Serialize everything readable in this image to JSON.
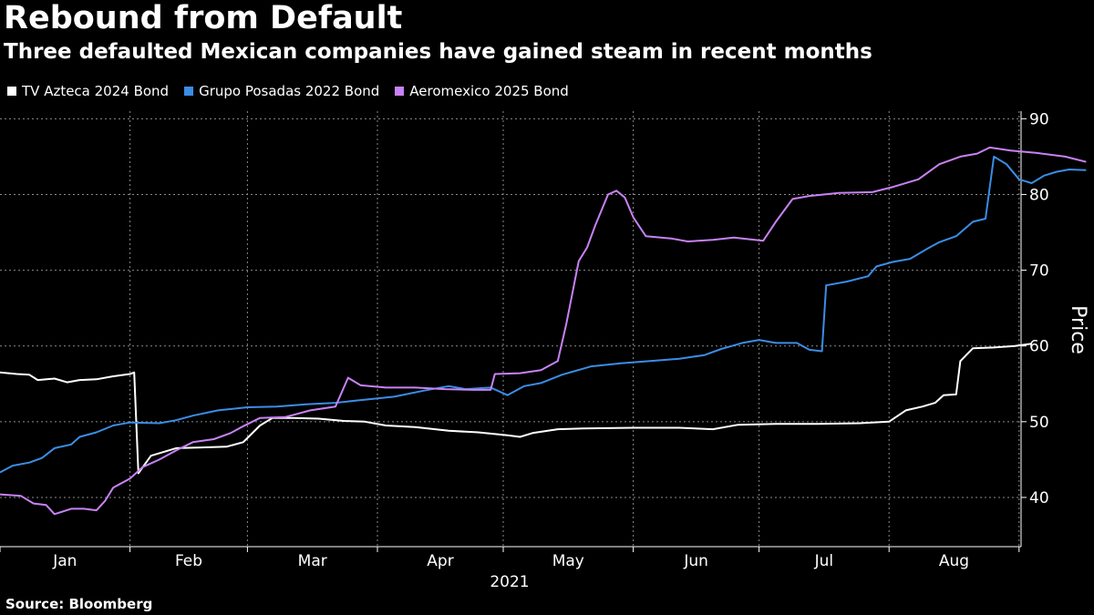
{
  "title": "Rebound from Default",
  "subtitle": "Three defaulted Mexican companies have gained steam in recent months",
  "source": "Source: Bloomberg",
  "chart_data": {
    "type": "line",
    "title": "Rebound from Default",
    "subtitle": "Three defaulted Mexican companies have gained steam in recent months",
    "ylabel": "Price",
    "xlabel": "2021",
    "ylim": [
      33.5,
      91
    ],
    "yticks": [
      40,
      50,
      60,
      70,
      80,
      90
    ],
    "xtick_labels": [
      "Jan",
      "Feb",
      "Mar",
      "Apr",
      "May",
      "Jun",
      "Jul",
      "Aug"
    ],
    "grid": true,
    "legend_position": "top-left",
    "series": [
      {
        "name": "TV Azteca 2024 Bond",
        "color": "#ffffff",
        "points": [
          [
            "2021-01-01",
            56.5
          ],
          [
            "2021-01-05",
            56.3
          ],
          [
            "2021-01-08",
            56.2
          ],
          [
            "2021-01-10",
            55.5
          ],
          [
            "2021-01-14",
            55.7
          ],
          [
            "2021-01-17",
            55.2
          ],
          [
            "2021-01-20",
            55.5
          ],
          [
            "2021-01-24",
            55.6
          ],
          [
            "2021-01-28",
            56.0
          ],
          [
            "2021-02-01",
            56.3
          ],
          [
            "2021-02-02",
            56.5
          ],
          [
            "2021-02-03",
            43.2
          ],
          [
            "2021-02-06",
            45.5
          ],
          [
            "2021-02-09",
            46.0
          ],
          [
            "2021-02-12",
            46.5
          ],
          [
            "2021-02-18",
            46.6
          ],
          [
            "2021-02-24",
            46.7
          ],
          [
            "2021-02-28",
            47.3
          ],
          [
            "2021-03-04",
            49.5
          ],
          [
            "2021-03-07",
            50.5
          ],
          [
            "2021-03-12",
            50.5
          ],
          [
            "2021-03-18",
            50.4
          ],
          [
            "2021-03-24",
            50.1
          ],
          [
            "2021-03-29",
            50.0
          ],
          [
            "2021-04-03",
            49.5
          ],
          [
            "2021-04-10",
            49.3
          ],
          [
            "2021-04-18",
            48.8
          ],
          [
            "2021-04-25",
            48.6
          ],
          [
            "2021-05-02",
            48.2
          ],
          [
            "2021-05-05",
            48.0
          ],
          [
            "2021-05-08",
            48.5
          ],
          [
            "2021-05-14",
            49.0
          ],
          [
            "2021-05-20",
            49.1
          ],
          [
            "2021-06-01",
            49.2
          ],
          [
            "2021-06-12",
            49.2
          ],
          [
            "2021-06-20",
            49.0
          ],
          [
            "2021-06-26",
            49.6
          ],
          [
            "2021-07-05",
            49.7
          ],
          [
            "2021-07-15",
            49.7
          ],
          [
            "2021-07-25",
            49.8
          ],
          [
            "2021-08-01",
            50.0
          ],
          [
            "2021-08-05",
            51.5
          ],
          [
            "2021-08-09",
            52.0
          ],
          [
            "2021-08-12",
            52.5
          ],
          [
            "2021-08-14",
            53.5
          ],
          [
            "2021-08-17",
            53.6
          ],
          [
            "2021-08-18",
            58.0
          ],
          [
            "2021-08-21",
            59.7
          ],
          [
            "2021-08-26",
            59.8
          ],
          [
            "2021-08-31",
            60.0
          ],
          [
            "2021-09-04",
            60.3
          ]
        ]
      },
      {
        "name": "Grupo Posadas 2022 Bond",
        "color": "#3b8de6",
        "points": [
          [
            "2021-01-01",
            43.3
          ],
          [
            "2021-01-04",
            44.2
          ],
          [
            "2021-01-08",
            44.6
          ],
          [
            "2021-01-11",
            45.2
          ],
          [
            "2021-01-14",
            46.5
          ],
          [
            "2021-01-18",
            47.0
          ],
          [
            "2021-01-20",
            48.0
          ],
          [
            "2021-01-24",
            48.6
          ],
          [
            "2021-01-28",
            49.5
          ],
          [
            "2021-02-01",
            49.9
          ],
          [
            "2021-02-08",
            49.8
          ],
          [
            "2021-02-12",
            50.2
          ],
          [
            "2021-02-16",
            50.8
          ],
          [
            "2021-02-22",
            51.5
          ],
          [
            "2021-03-01",
            51.9
          ],
          [
            "2021-03-08",
            52.0
          ],
          [
            "2021-03-15",
            52.3
          ],
          [
            "2021-03-22",
            52.5
          ],
          [
            "2021-03-27",
            52.8
          ],
          [
            "2021-04-05",
            53.3
          ],
          [
            "2021-04-12",
            54.1
          ],
          [
            "2021-04-18",
            54.7
          ],
          [
            "2021-04-22",
            54.3
          ],
          [
            "2021-04-28",
            54.5
          ],
          [
            "2021-05-02",
            53.5
          ],
          [
            "2021-05-06",
            54.7
          ],
          [
            "2021-05-10",
            55.1
          ],
          [
            "2021-05-15",
            56.2
          ],
          [
            "2021-05-22",
            57.3
          ],
          [
            "2021-05-29",
            57.7
          ],
          [
            "2021-06-05",
            58.0
          ],
          [
            "2021-06-12",
            58.3
          ],
          [
            "2021-06-18",
            58.8
          ],
          [
            "2021-06-22",
            59.6
          ],
          [
            "2021-06-27",
            60.4
          ],
          [
            "2021-07-01",
            60.8
          ],
          [
            "2021-07-05",
            60.4
          ],
          [
            "2021-07-10",
            60.4
          ],
          [
            "2021-07-13",
            59.5
          ],
          [
            "2021-07-16",
            59.3
          ],
          [
            "2021-07-17",
            68.0
          ],
          [
            "2021-07-22",
            68.5
          ],
          [
            "2021-07-27",
            69.2
          ],
          [
            "2021-07-29",
            70.5
          ],
          [
            "2021-08-02",
            71.1
          ],
          [
            "2021-08-06",
            71.5
          ],
          [
            "2021-08-10",
            72.8
          ],
          [
            "2021-08-13",
            73.7
          ],
          [
            "2021-08-17",
            74.5
          ],
          [
            "2021-08-21",
            76.4
          ],
          [
            "2021-08-24",
            76.8
          ],
          [
            "2021-08-26",
            85.0
          ],
          [
            "2021-08-29",
            84.0
          ],
          [
            "2021-09-01",
            82.0
          ],
          [
            "2021-09-04",
            81.5
          ],
          [
            "2021-09-07",
            82.5
          ],
          [
            "2021-09-10",
            83.0
          ],
          [
            "2021-09-13",
            83.3
          ],
          [
            "2021-09-17",
            83.2
          ]
        ]
      },
      {
        "name": "Aeromexico 2025 Bond",
        "color": "#c882f5",
        "points": [
          [
            "2021-01-01",
            40.4
          ],
          [
            "2021-01-06",
            40.2
          ],
          [
            "2021-01-09",
            39.2
          ],
          [
            "2021-01-12",
            39.0
          ],
          [
            "2021-01-14",
            37.8
          ],
          [
            "2021-01-18",
            38.5
          ],
          [
            "2021-01-21",
            38.5
          ],
          [
            "2021-01-24",
            38.3
          ],
          [
            "2021-01-26",
            39.5
          ],
          [
            "2021-01-28",
            41.3
          ],
          [
            "2021-02-01",
            42.5
          ],
          [
            "2021-02-04",
            44.0
          ],
          [
            "2021-02-08",
            45.0
          ],
          [
            "2021-02-12",
            46.2
          ],
          [
            "2021-02-16",
            47.3
          ],
          [
            "2021-02-21",
            47.7
          ],
          [
            "2021-02-25",
            48.5
          ],
          [
            "2021-02-28",
            49.4
          ],
          [
            "2021-03-04",
            50.5
          ],
          [
            "2021-03-10",
            50.6
          ],
          [
            "2021-03-16",
            51.5
          ],
          [
            "2021-03-22",
            52.0
          ],
          [
            "2021-03-25",
            55.8
          ],
          [
            "2021-03-28",
            54.8
          ],
          [
            "2021-04-03",
            54.5
          ],
          [
            "2021-04-10",
            54.5
          ],
          [
            "2021-04-17",
            54.3
          ],
          [
            "2021-04-24",
            54.2
          ],
          [
            "2021-04-28",
            54.2
          ],
          [
            "2021-04-29",
            56.3
          ],
          [
            "2021-05-05",
            56.4
          ],
          [
            "2021-05-10",
            56.8
          ],
          [
            "2021-05-14",
            58.0
          ],
          [
            "2021-05-16",
            62.8
          ],
          [
            "2021-05-19",
            71.2
          ],
          [
            "2021-05-21",
            73.0
          ],
          [
            "2021-05-23",
            76.0
          ],
          [
            "2021-05-26",
            80.0
          ],
          [
            "2021-05-28",
            80.5
          ],
          [
            "2021-05-30",
            79.6
          ],
          [
            "2021-06-01",
            77.0
          ],
          [
            "2021-06-04",
            74.5
          ],
          [
            "2021-06-10",
            74.2
          ],
          [
            "2021-06-14",
            73.8
          ],
          [
            "2021-06-20",
            74.0
          ],
          [
            "2021-06-25",
            74.3
          ],
          [
            "2021-06-30",
            74.0
          ],
          [
            "2021-07-02",
            73.9
          ],
          [
            "2021-07-05",
            76.4
          ],
          [
            "2021-07-09",
            79.4
          ],
          [
            "2021-07-13",
            79.8
          ],
          [
            "2021-07-20",
            80.2
          ],
          [
            "2021-07-28",
            80.3
          ],
          [
            "2021-08-02",
            81.0
          ],
          [
            "2021-08-08",
            82.0
          ],
          [
            "2021-08-13",
            84.0
          ],
          [
            "2021-08-18",
            85.0
          ],
          [
            "2021-08-22",
            85.4
          ],
          [
            "2021-08-25",
            86.2
          ],
          [
            "2021-08-30",
            85.8
          ],
          [
            "2021-09-05",
            85.5
          ],
          [
            "2021-09-12",
            85.0
          ],
          [
            "2021-09-17",
            84.3
          ]
        ]
      }
    ]
  }
}
